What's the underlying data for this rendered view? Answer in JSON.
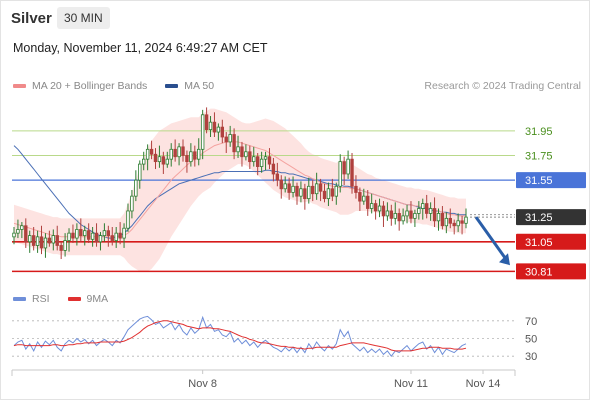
{
  "header": {
    "instrument": "Silver",
    "timeframe": "30 MIN",
    "datetime": "Monday, November 11, 2024 6:49:27 AM CET"
  },
  "legend": {
    "items": [
      {
        "label": "MA 20 + Bollinger Bands",
        "color": "#f08a8a"
      },
      {
        "label": "MA 50",
        "color": "#2a4f8f"
      }
    ],
    "credit": "Research © 2024 Trading Central"
  },
  "colors": {
    "up": "#2e7d32",
    "down": "#b0413e",
    "band_fill": "#fde3e1",
    "ma20": "#f4a3a0",
    "ma50": "#4a6fb5",
    "green_level": "#b9d98a",
    "blue_level": "#4a74d8",
    "red_level": "#d61a1a",
    "current": "#333333",
    "arrow": "#2a5ea8",
    "rsi": "#6f8fd9",
    "rsi_ma": "#e03030"
  },
  "chart_data": {
    "type": "candlestick",
    "price_range": [
      30.74,
      32.2
    ],
    "levels": [
      {
        "label": "31.95",
        "value": 31.95,
        "style": "green"
      },
      {
        "label": "31.75",
        "value": 31.75,
        "style": "green"
      },
      {
        "label": "31.55",
        "value": 31.55,
        "style": "blue"
      },
      {
        "label": "31.25",
        "value": 31.25,
        "style": "current"
      },
      {
        "label": "31.05",
        "value": 31.05,
        "style": "red"
      },
      {
        "label": "30.81",
        "value": 30.81,
        "style": "red"
      }
    ],
    "closes": [
      31.12,
      31.15,
      31.18,
      31.05,
      31.1,
      31.02,
      31.09,
      31.0,
      31.08,
      31.04,
      31.1,
      31.02,
      30.98,
      31.06,
      31.12,
      31.08,
      31.15,
      31.1,
      31.14,
      31.07,
      31.12,
      31.05,
      31.1,
      31.14,
      31.1,
      31.06,
      31.12,
      31.08,
      31.16,
      31.3,
      31.42,
      31.55,
      31.68,
      31.72,
      31.8,
      31.76,
      31.7,
      31.74,
      31.68,
      31.72,
      31.8,
      31.74,
      31.82,
      31.75,
      31.7,
      31.78,
      31.72,
      31.8,
      32.08,
      31.96,
      32.02,
      31.94,
      31.98,
      31.9,
      31.86,
      31.92,
      31.78,
      31.82,
      31.74,
      31.78,
      31.7,
      31.74,
      31.66,
      31.72,
      31.74,
      31.68,
      31.6,
      31.55,
      31.48,
      31.52,
      31.45,
      31.5,
      31.42,
      31.48,
      31.4,
      31.5,
      31.44,
      31.52,
      31.46,
      31.4,
      31.48,
      31.42,
      31.5,
      31.7,
      31.6,
      31.72,
      31.5,
      31.45,
      31.38,
      31.42,
      31.32,
      31.36,
      31.3,
      31.34,
      31.26,
      31.3,
      31.24,
      31.28,
      31.22,
      31.26,
      31.3,
      31.24,
      31.28,
      31.32,
      31.36,
      31.28,
      31.32,
      31.22,
      31.28,
      31.18,
      31.24,
      31.2,
      31.18,
      31.22,
      31.2,
      31.25
    ],
    "ma50": [
      31.83,
      31.8,
      31.76,
      31.72,
      31.68,
      31.64,
      31.6,
      31.56,
      31.52,
      31.48,
      31.44,
      31.4,
      31.36,
      31.32,
      31.28,
      31.25,
      31.22,
      31.19,
      31.17,
      31.15,
      31.13,
      31.11,
      31.1,
      31.09,
      31.08,
      31.08,
      31.09,
      31.1,
      31.12,
      31.15,
      31.18,
      31.22,
      31.26,
      31.3,
      31.34,
      31.37,
      31.4,
      31.42,
      31.44,
      31.46,
      31.48,
      31.5,
      31.52,
      31.53,
      31.54,
      31.55,
      31.56,
      31.57,
      31.58,
      31.59,
      31.6,
      31.61,
      31.61,
      31.62,
      31.62,
      31.62,
      31.62,
      31.62,
      31.62,
      31.62,
      31.62,
      31.62,
      31.62,
      31.62,
      31.63,
      31.63,
      31.62,
      31.62,
      31.61,
      31.61,
      31.6,
      31.6,
      31.59,
      31.58,
      31.57,
      31.56,
      31.56,
      31.55,
      31.54,
      31.53,
      31.52,
      31.52,
      31.51,
      31.51,
      31.5,
      31.5,
      31.49,
      31.48,
      31.47,
      31.46,
      31.45,
      31.44,
      31.43,
      31.42,
      31.41,
      31.4,
      31.39,
      31.38,
      31.37,
      31.36,
      31.35,
      31.35,
      31.34,
      31.33,
      31.32,
      31.32,
      31.31,
      31.3,
      31.3,
      31.29,
      31.29,
      31.28,
      31.28,
      31.27,
      31.27,
      31.27
    ],
    "ma20": [
      31.2,
      31.19,
      31.18,
      31.17,
      31.16,
      31.15,
      31.14,
      31.13,
      31.12,
      31.11,
      31.1,
      31.1,
      31.09,
      31.09,
      31.09,
      31.09,
      31.09,
      31.09,
      31.09,
      31.09,
      31.09,
      31.09,
      31.09,
      31.09,
      31.09,
      31.09,
      31.09,
      31.09,
      31.1,
      31.12,
      31.15,
      31.19,
      31.23,
      31.27,
      31.31,
      31.35,
      31.39,
      31.43,
      31.47,
      31.51,
      31.55,
      31.58,
      31.61,
      31.64,
      31.67,
      31.7,
      31.72,
      31.74,
      31.77,
      31.79,
      31.81,
      31.83,
      31.84,
      31.85,
      31.86,
      31.86,
      31.86,
      31.86,
      31.85,
      31.84,
      31.83,
      31.82,
      31.81,
      31.8,
      31.79,
      31.77,
      31.75,
      31.73,
      31.71,
      31.69,
      31.67,
      31.65,
      31.63,
      31.61,
      31.59,
      31.58,
      31.56,
      31.55,
      31.53,
      31.52,
      31.51,
      31.5,
      31.49,
      31.49,
      31.49,
      31.49,
      31.48,
      31.48,
      31.47,
      31.46,
      31.45,
      31.44,
      31.43,
      31.42,
      31.41,
      31.4,
      31.39,
      31.38,
      31.37,
      31.36,
      31.35,
      31.35,
      31.34,
      31.34,
      31.33,
      31.33,
      31.32,
      31.31,
      31.3,
      31.29,
      31.28,
      31.27,
      31.27,
      31.26,
      31.26,
      31.26
    ],
    "band_width": [
      0.15,
      0.15,
      0.15,
      0.15,
      0.15,
      0.15,
      0.15,
      0.15,
      0.15,
      0.15,
      0.15,
      0.15,
      0.15,
      0.15,
      0.15,
      0.15,
      0.15,
      0.15,
      0.15,
      0.15,
      0.15,
      0.15,
      0.15,
      0.15,
      0.15,
      0.15,
      0.15,
      0.15,
      0.18,
      0.24,
      0.3,
      0.36,
      0.42,
      0.46,
      0.5,
      0.52,
      0.52,
      0.52,
      0.5,
      0.48,
      0.46,
      0.44,
      0.42,
      0.4,
      0.38,
      0.36,
      0.34,
      0.32,
      0.32,
      0.32,
      0.32,
      0.3,
      0.28,
      0.26,
      0.24,
      0.22,
      0.2,
      0.18,
      0.17,
      0.17,
      0.18,
      0.2,
      0.22,
      0.24,
      0.26,
      0.27,
      0.28,
      0.28,
      0.28,
      0.28,
      0.27,
      0.26,
      0.25,
      0.24,
      0.22,
      0.2,
      0.2,
      0.2,
      0.2,
      0.2,
      0.2,
      0.2,
      0.2,
      0.22,
      0.22,
      0.22,
      0.2,
      0.18,
      0.17,
      0.16,
      0.15,
      0.15,
      0.14,
      0.14,
      0.14,
      0.14,
      0.14,
      0.14,
      0.14,
      0.14,
      0.14,
      0.14,
      0.14,
      0.14,
      0.14,
      0.14,
      0.14,
      0.14,
      0.14,
      0.14,
      0.14,
      0.14,
      0.14,
      0.14,
      0.14,
      0.14
    ],
    "rsi": {
      "ticks": [
        {
          "label": "70",
          "value": 70
        },
        {
          "label": "50",
          "value": 50
        },
        {
          "label": "30",
          "value": 30
        }
      ],
      "range": [
        20,
        80
      ],
      "values": [
        42,
        46,
        48,
        38,
        44,
        36,
        46,
        40,
        47,
        43,
        48,
        40,
        36,
        44,
        48,
        45,
        50,
        46,
        49,
        44,
        48,
        42,
        46,
        49,
        46,
        42,
        48,
        45,
        52,
        60,
        64,
        68,
        72,
        74,
        75,
        71,
        66,
        68,
        62,
        65,
        68,
        60,
        66,
        58,
        54,
        62,
        56,
        60,
        74,
        62,
        66,
        58,
        60,
        54,
        52,
        57,
        46,
        50,
        44,
        48,
        42,
        46,
        40,
        45,
        48,
        44,
        40,
        38,
        35,
        40,
        36,
        40,
        34,
        40,
        34,
        44,
        38,
        46,
        40,
        36,
        42,
        38,
        44,
        60,
        52,
        58,
        44,
        40,
        36,
        40,
        34,
        38,
        34,
        38,
        32,
        36,
        30,
        36,
        34,
        38,
        42,
        36,
        40,
        44,
        46,
        38,
        42,
        34,
        40,
        32,
        38,
        36,
        34,
        38,
        42,
        44
      ],
      "ma9": [
        42,
        43,
        43,
        42,
        42,
        42,
        42,
        42,
        42,
        42,
        43,
        43,
        42,
        42,
        43,
        43,
        44,
        44,
        45,
        45,
        45,
        45,
        46,
        46,
        46,
        46,
        46,
        46,
        47,
        49,
        51,
        54,
        57,
        61,
        64,
        66,
        68,
        69,
        70,
        70,
        69,
        68,
        67,
        66,
        64,
        63,
        62,
        61,
        62,
        62,
        62,
        61,
        61,
        60,
        59,
        58,
        56,
        54,
        52,
        51,
        49,
        48,
        46,
        45,
        45,
        44,
        43,
        42,
        41,
        41,
        40,
        40,
        39,
        39,
        38,
        39,
        39,
        40,
        40,
        40,
        40,
        40,
        40,
        42,
        43,
        44,
        45,
        45,
        45,
        45,
        44,
        43,
        42,
        41,
        40,
        39,
        37,
        36,
        36,
        36,
        36,
        36,
        37,
        38,
        39,
        39,
        40,
        40,
        40,
        39,
        39,
        39,
        38,
        38,
        38,
        39
      ]
    },
    "x_ticks": [
      {
        "label": "Nov 8",
        "index": 48
      },
      {
        "label": "Nov 11",
        "index": 101
      },
      {
        "label": "Nov 14",
        "index": 114
      }
    ],
    "forecast_arrow": {
      "from": 31.25,
      "to": 30.86
    }
  },
  "rsi_legend": {
    "items": [
      {
        "label": "RSI",
        "color": "#6f8fd9"
      },
      {
        "label": "9MA",
        "color": "#e03030"
      }
    ]
  }
}
